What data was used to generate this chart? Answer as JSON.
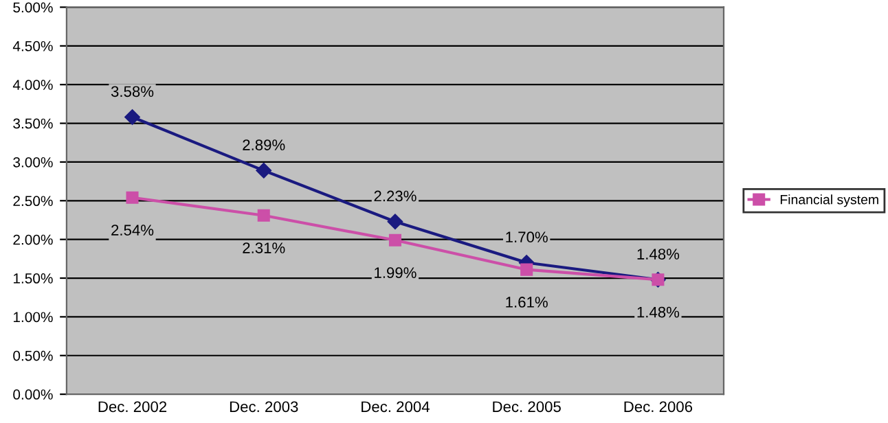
{
  "chart_data": {
    "type": "line",
    "categories": [
      "Dec. 2002",
      "Dec. 2003",
      "Dec. 2004",
      "Dec. 2005",
      "Dec. 2006"
    ],
    "series": [
      {
        "color": "#1a1a80",
        "marker": "diamond",
        "values": [
          3.58,
          2.89,
          2.23,
          1.7,
          1.48
        ],
        "value_labels": [
          "3.58%",
          "2.89%",
          "2.23%",
          "1.70%",
          "1.48%"
        ]
      },
      {
        "name": "Financial system",
        "color": "#cc4fa8",
        "marker": "square",
        "values": [
          2.54,
          2.31,
          1.99,
          1.61,
          1.48
        ],
        "value_labels": [
          "2.54%",
          "2.31%",
          "1.99%",
          "1.61%",
          "1.48%"
        ]
      }
    ],
    "ylim": [
      0,
      5
    ],
    "yticks": [
      {
        "value": 0,
        "label": "0.00%"
      },
      {
        "value": 0.5,
        "label": "0.50%"
      },
      {
        "value": 1,
        "label": "1.00%"
      },
      {
        "value": 1.5,
        "label": "1.50%"
      },
      {
        "value": 2,
        "label": "2.00%"
      },
      {
        "value": 2.5,
        "label": "2.50%"
      },
      {
        "value": 3,
        "label": "3.00%"
      },
      {
        "value": 3.5,
        "label": "3.50%"
      },
      {
        "value": 4,
        "label": "4.00%"
      },
      {
        "value": 4.5,
        "label": "4.50%"
      },
      {
        "value": 5,
        "label": "5.00%"
      }
    ],
    "grid": "y",
    "legend": "right",
    "line_style": "solid"
  }
}
